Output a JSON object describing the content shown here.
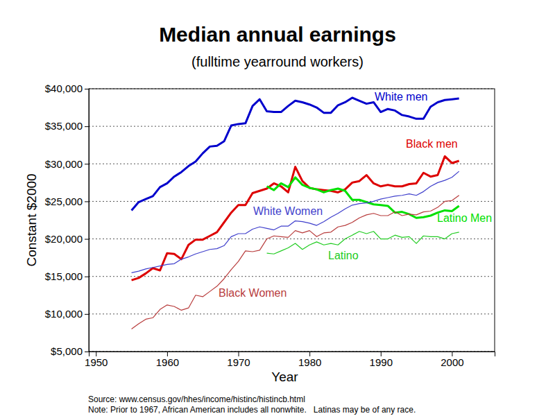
{
  "chart_data": {
    "type": "line",
    "title": "Median annual earnings",
    "subtitle": "(fulltime yearround workers)",
    "x_label": "Year",
    "y_label": "Constant $2000",
    "annotations": [
      "Source: www.census.gov/hhes/income/histinc/histincb.html",
      "Note: Prior to 1967, African American includes all nonwhite.   Latinas may be of any race."
    ],
    "x": [
      1955,
      1956,
      1957,
      1958,
      1959,
      1960,
      1961,
      1962,
      1963,
      1964,
      1965,
      1966,
      1967,
      1968,
      1969,
      1970,
      1971,
      1972,
      1973,
      1974,
      1975,
      1976,
      1977,
      1978,
      1979,
      1980,
      1981,
      1982,
      1983,
      1984,
      1985,
      1986,
      1987,
      1988,
      1989,
      1990,
      1991,
      1992,
      1993,
      1994,
      1995,
      1996,
      1997,
      1998,
      1999,
      2000,
      2001
    ],
    "series": [
      {
        "name": "White men",
        "color": "#0000cc",
        "line_style": "thick",
        "values": [
          23800,
          24900,
          25300,
          25700,
          26900,
          27400,
          28300,
          28900,
          29700,
          30300,
          31400,
          32300,
          32400,
          33000,
          35100,
          35300,
          35400,
          37700,
          38600,
          37000,
          36900,
          36900,
          37700,
          38400,
          38200,
          37900,
          37500,
          36800,
          36800,
          37800,
          38200,
          38800,
          38400,
          38000,
          38200,
          36900,
          37300,
          37100,
          36500,
          36300,
          36000,
          36000,
          37600,
          38200,
          38500,
          38600,
          38700
        ]
      },
      {
        "name": "Black men",
        "color": "#dd0000",
        "line_style": "thick",
        "values": [
          14500,
          14800,
          15400,
          16100,
          15800,
          18100,
          18000,
          17300,
          19200,
          19900,
          19900,
          20400,
          20900,
          22200,
          23500,
          24500,
          24500,
          26100,
          26400,
          26700,
          27400,
          27000,
          26200,
          29600,
          27700,
          26800,
          26600,
          26500,
          26400,
          26200,
          26600,
          27500,
          27700,
          28500,
          27400,
          27000,
          27200,
          27000,
          27000,
          27300,
          27400,
          28800,
          28300,
          28500,
          31000,
          30100,
          30400
        ]
      },
      {
        "name": "Latino Men",
        "color": "#00e000",
        "line_style": "thick",
        "values": [
          null,
          null,
          null,
          null,
          null,
          null,
          null,
          null,
          null,
          null,
          null,
          null,
          null,
          null,
          null,
          null,
          null,
          null,
          null,
          27000,
          26500,
          27400,
          26900,
          28200,
          27200,
          26800,
          26600,
          26200,
          26500,
          26700,
          26400,
          25200,
          25200,
          24900,
          24600,
          24500,
          24400,
          23500,
          23600,
          23300,
          22800,
          22900,
          23100,
          23500,
          23800,
          23700,
          24400
        ]
      },
      {
        "name": "White Women",
        "color": "#3f3fcc",
        "line_style": "thin",
        "values": [
          15500,
          15700,
          16000,
          16200,
          16400,
          16600,
          16700,
          17300,
          17600,
          18000,
          18300,
          18600,
          18700,
          19100,
          20300,
          20700,
          20700,
          21300,
          21600,
          21400,
          21200,
          21700,
          21700,
          22400,
          22300,
          22100,
          21800,
          22300,
          22900,
          23400,
          24000,
          24500,
          24700,
          24800,
          25000,
          25300,
          25500,
          25700,
          25800,
          26000,
          25800,
          26300,
          27000,
          27500,
          27800,
          28200,
          29000
        ]
      },
      {
        "name": "Black Women",
        "color": "#b83c3c",
        "line_style": "thin",
        "values": [
          8000,
          8700,
          9300,
          9500,
          10600,
          11200,
          11000,
          10500,
          10800,
          12500,
          12300,
          13000,
          13700,
          14700,
          15900,
          17000,
          18400,
          18300,
          18500,
          20000,
          20400,
          20300,
          20200,
          21100,
          20800,
          21100,
          20300,
          20800,
          20900,
          21600,
          21800,
          22200,
          22800,
          23200,
          23400,
          23100,
          23100,
          23600,
          23100,
          23300,
          23200,
          23600,
          23700,
          24200,
          25000,
          25100,
          25800
        ]
      },
      {
        "name": "Latino",
        "color": "#22cc22",
        "line_style": "thin",
        "values": [
          null,
          null,
          null,
          null,
          null,
          null,
          null,
          null,
          null,
          null,
          null,
          null,
          null,
          null,
          null,
          null,
          null,
          null,
          null,
          18100,
          18000,
          18400,
          18800,
          19400,
          18600,
          19200,
          19600,
          19200,
          19400,
          19200,
          20000,
          20500,
          21000,
          20700,
          21000,
          20000,
          20000,
          20500,
          20200,
          20300,
          19400,
          20400,
          20300,
          20300,
          20000,
          20700,
          20900
        ]
      }
    ],
    "xlim": [
      1949,
      2006
    ],
    "xticks": [
      1950,
      1960,
      1970,
      1980,
      1990,
      2000
    ],
    "ylim": [
      5000,
      40000
    ],
    "yticks": [
      {
        "value": 5000,
        "label": "$5,000"
      },
      {
        "value": 10000,
        "label": "$10,000"
      },
      {
        "value": 15000,
        "label": "$15,000"
      },
      {
        "value": 20000,
        "label": "$20,000"
      },
      {
        "value": 25000,
        "label": "$25,000"
      },
      {
        "value": 30000,
        "label": "$30,000"
      },
      {
        "value": 35000,
        "label": "$35,000"
      },
      {
        "value": 40000,
        "label": "$40,000"
      }
    ],
    "grid": true
  }
}
